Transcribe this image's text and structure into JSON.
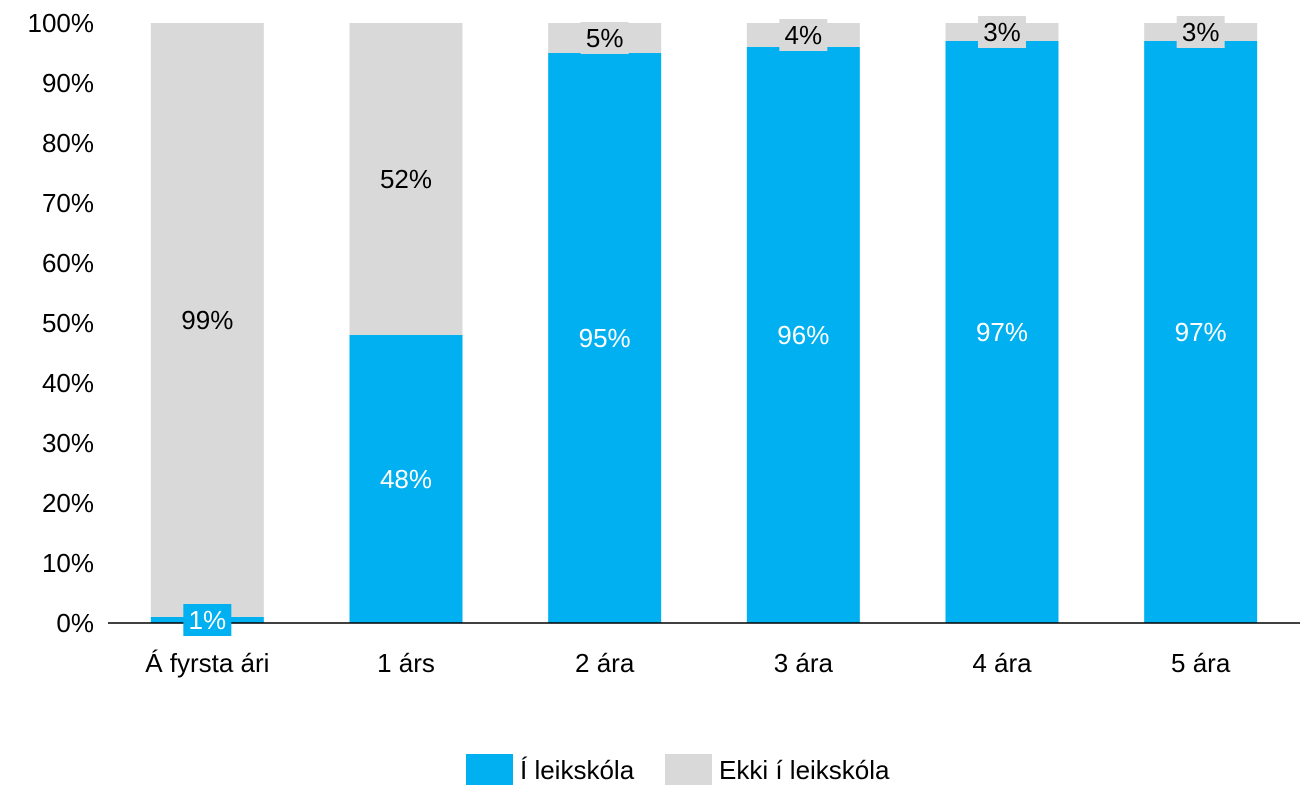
{
  "chart_data": {
    "type": "stacked_bar",
    "categories": [
      "Á fyrsta ári",
      "1 árs",
      "2 ára",
      "3 ára",
      "4 ára",
      "5 ára"
    ],
    "series": [
      {
        "name": "Í leikskóla",
        "color": "#00b0f0",
        "values": [
          1,
          48,
          95,
          96,
          97,
          97
        ],
        "value_labels": [
          "1%",
          "48%",
          "95%",
          "96%",
          "97%",
          "97%"
        ]
      },
      {
        "name": "Ekki í leikskóla",
        "color": "#d9d9d9",
        "values": [
          99,
          52,
          5,
          4,
          3,
          3
        ],
        "value_labels": [
          "99%",
          "52%",
          "5%",
          "4%",
          "3%",
          "3%"
        ]
      }
    ],
    "ylim": [
      0,
      100
    ],
    "yticks": [
      {
        "value": 0,
        "label": "0%"
      },
      {
        "value": 10,
        "label": "10%"
      },
      {
        "value": 20,
        "label": "20%"
      },
      {
        "value": 30,
        "label": "30%"
      },
      {
        "value": 40,
        "label": "40%"
      },
      {
        "value": 50,
        "label": "50%"
      },
      {
        "value": 60,
        "label": "60%"
      },
      {
        "value": 70,
        "label": "70%"
      },
      {
        "value": 80,
        "label": "80%"
      },
      {
        "value": 90,
        "label": "90%"
      },
      {
        "value": 100,
        "label": "100%"
      }
    ],
    "legend": "bottom"
  }
}
